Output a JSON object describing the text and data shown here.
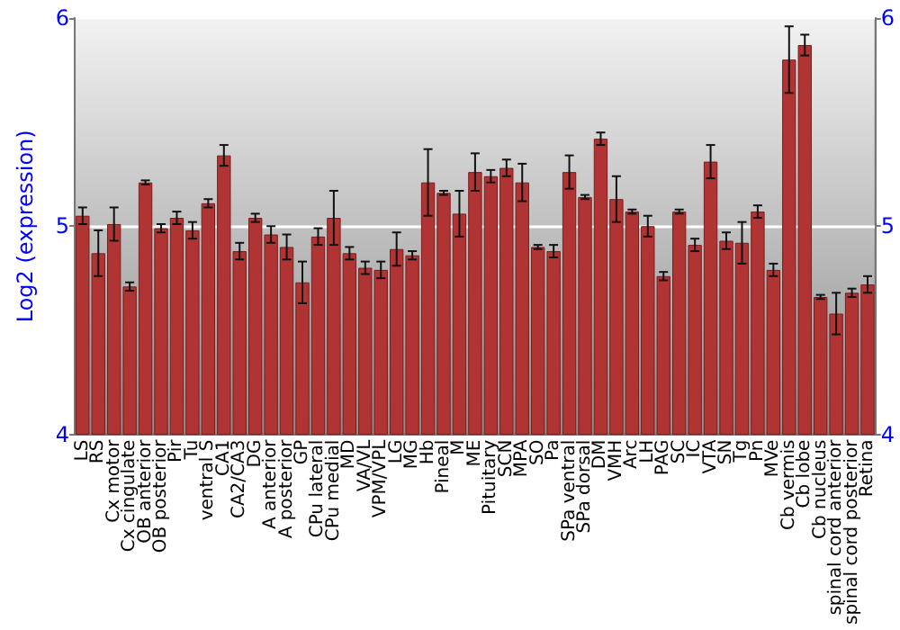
{
  "chart_data": {
    "type": "bar",
    "ylabel": "Log2 (expression)",
    "categories": [
      "LS",
      "RS",
      "Cx motor",
      "Cx cingulate",
      "OB anterior",
      "OB posterior",
      "Pir",
      "Tu",
      "ventral S",
      "CA1",
      "CA2/CA3",
      "DG",
      "A anterior",
      "A posterior",
      "GP",
      "CPu lateral",
      "CPu medial",
      "MD",
      "VA/VL",
      "VPM/VPL",
      "LG",
      "MG",
      "Hb",
      "Pineal",
      "M",
      "ME",
      "Pituitary",
      "SCN",
      "MPA",
      "SO",
      "Pa",
      "SPa ventral",
      "SPa dorsal",
      "DM",
      "VMH",
      "Arc",
      "LH",
      "PAG",
      "SC",
      "IC",
      "VTA",
      "SN",
      "Tg",
      "Pn",
      "MVe",
      "Cb vermis",
      "Cb lobe",
      "Cb nucleus",
      "spinal cord anterior",
      "spinal cord posterior",
      "Retina"
    ],
    "values": [
      5.05,
      4.87,
      5.01,
      4.71,
      5.21,
      4.99,
      5.04,
      4.98,
      5.11,
      5.34,
      4.88,
      5.04,
      4.96,
      4.9,
      4.73,
      4.95,
      5.04,
      4.87,
      4.8,
      4.79,
      4.89,
      4.86,
      5.21,
      5.16,
      5.06,
      5.26,
      5.24,
      5.28,
      5.21,
      4.9,
      4.88,
      5.26,
      5.14,
      5.42,
      5.13,
      5.07,
      5.0,
      4.76,
      5.07,
      4.91,
      5.31,
      4.93,
      4.92,
      5.07,
      4.79,
      5.8,
      5.87,
      4.66,
      4.58,
      4.68,
      4.72
    ],
    "errors": [
      0.04,
      0.11,
      0.08,
      0.02,
      0.01,
      0.02,
      0.03,
      0.04,
      0.02,
      0.05,
      0.04,
      0.02,
      0.04,
      0.06,
      0.1,
      0.04,
      0.13,
      0.03,
      0.03,
      0.04,
      0.08,
      0.02,
      0.16,
      0.01,
      0.11,
      0.09,
      0.03,
      0.04,
      0.09,
      0.01,
      0.03,
      0.08,
      0.01,
      0.03,
      0.11,
      0.01,
      0.05,
      0.02,
      0.01,
      0.03,
      0.08,
      0.04,
      0.1,
      0.03,
      0.03,
      0.16,
      0.05,
      0.01,
      0.1,
      0.02,
      0.04
    ],
    "color": "#b03434",
    "ylim": [
      4,
      6
    ],
    "yticks": [
      4,
      5,
      6
    ],
    "y2lim": [
      4,
      6
    ],
    "y2ticks": [
      4,
      5,
      6
    ],
    "grid": "y"
  }
}
